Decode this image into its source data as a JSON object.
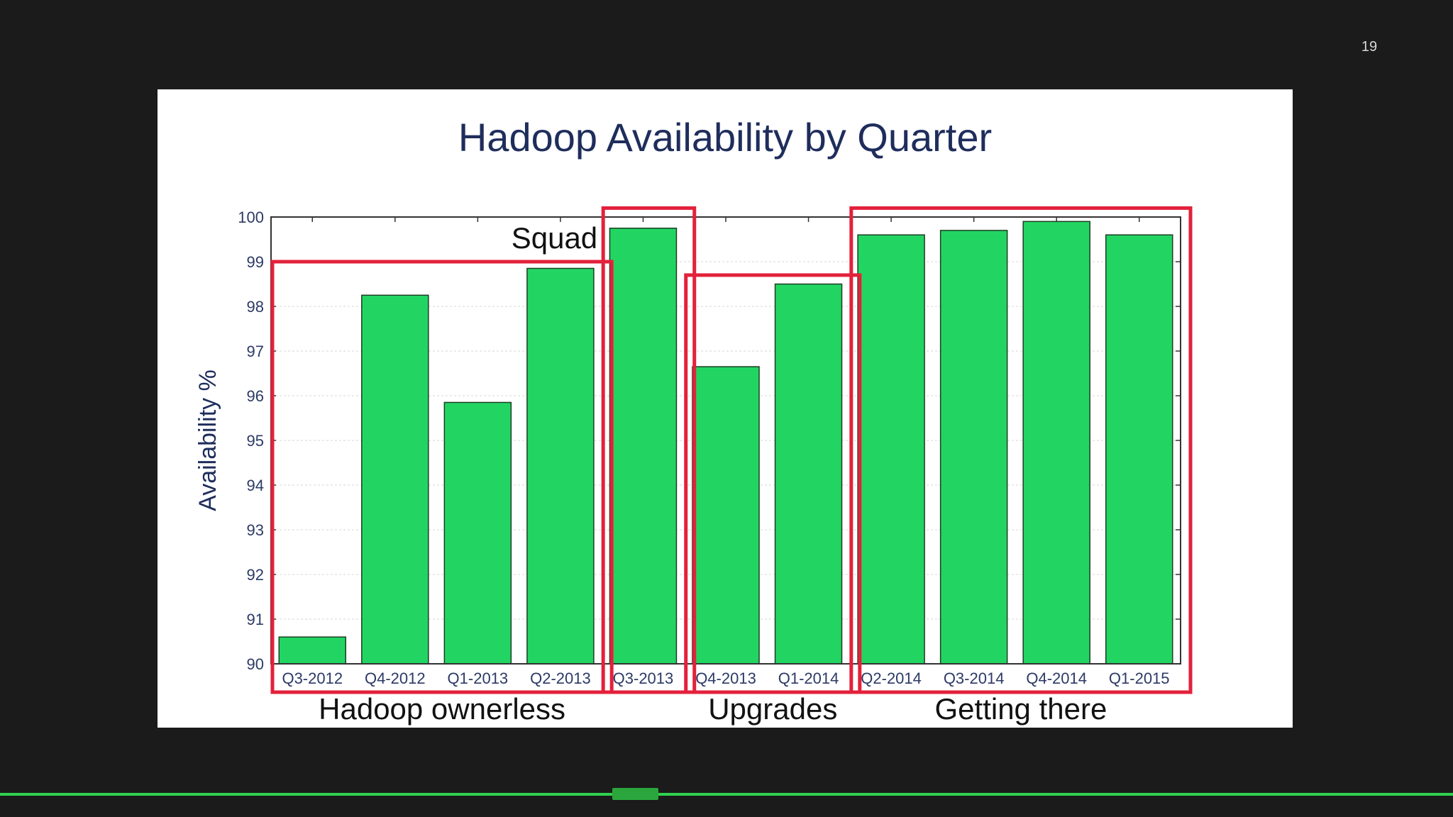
{
  "slide": {
    "number": "19"
  },
  "colors": {
    "background": "#1b1b1b",
    "bar_fill": "#22d562",
    "bar_stroke": "#1c3d24",
    "title": "#1f2d5c",
    "highlight": "#e3213b",
    "progress": "#2fd14e"
  },
  "chart_data": {
    "type": "bar",
    "title": "Hadoop Availability by Quarter",
    "xlabel": "",
    "ylabel": "Availability %",
    "ylim": [
      90,
      100
    ],
    "yticks": [
      "90",
      "91",
      "92",
      "93",
      "94",
      "95",
      "96",
      "97",
      "98",
      "99",
      "100"
    ],
    "grid": true,
    "categories": [
      "Q3-2012",
      "Q4-2012",
      "Q1-2013",
      "Q2-2013",
      "Q3-2013",
      "Q4-2013",
      "Q1-2014",
      "Q2-2014",
      "Q3-2014",
      "Q4-2014",
      "Q1-2015"
    ],
    "values": [
      90.6,
      98.25,
      95.85,
      98.85,
      99.75,
      96.65,
      98.5,
      99.6,
      99.7,
      99.9,
      99.6
    ],
    "annotations": [
      {
        "label": "Hadoop ownerless",
        "from": 0,
        "to": 3,
        "box_top_value": 99.0
      },
      {
        "label": "Squad",
        "from": 4,
        "to": 4,
        "box_top_value": 100.2
      },
      {
        "label": "Upgrades",
        "from": 5,
        "to": 6,
        "box_top_value": 98.7
      },
      {
        "label": "Getting there",
        "from": 7,
        "to": 10,
        "box_top_value": 100.2
      }
    ]
  }
}
